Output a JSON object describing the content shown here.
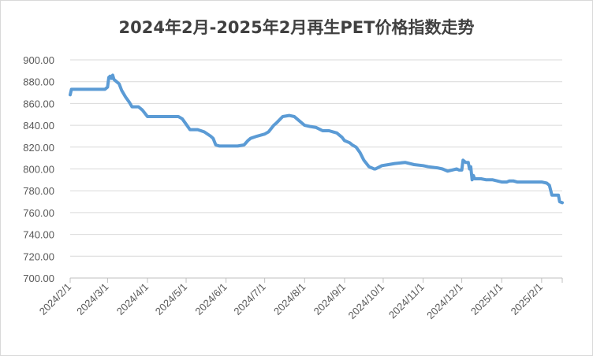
{
  "chart_data": {
    "type": "line",
    "title": "2024年2月-2025年2月再生PET价格指数走势",
    "xlabel": "",
    "ylabel": "",
    "ylim": [
      700,
      900
    ],
    "y_ticks": [
      "700.00",
      "720.00",
      "740.00",
      "760.00",
      "780.00",
      "800.00",
      "820.00",
      "840.00",
      "860.00",
      "880.00",
      "900.00"
    ],
    "x_ticks": [
      "2024/2/1",
      "2024/3/1",
      "2024/4/1",
      "2024/5/1",
      "2024/6/1",
      "2024/7/1",
      "2024/8/1",
      "2024/9/1",
      "2024/10/1",
      "2024/11/1",
      "2024/12/1",
      "2025/1/1",
      "2025/2/1"
    ],
    "grid": true,
    "legend": "none",
    "colors": {
      "line": "#5b9bd5",
      "grid": "#d9d9d9",
      "text": "#595959",
      "title": "#404040"
    },
    "series": [
      {
        "x": [
          "2024-02-01",
          "2024-02-02",
          "2024-02-05",
          "2024-02-10",
          "2024-02-20",
          "2024-02-28",
          "2024-03-01",
          "2024-03-02",
          "2024-03-03",
          "2024-03-04",
          "2024-03-05",
          "2024-03-06",
          "2024-03-08",
          "2024-03-10",
          "2024-03-12",
          "2024-03-15",
          "2024-03-18",
          "2024-03-20",
          "2024-03-25",
          "2024-03-28",
          "2024-04-01",
          "2024-04-10",
          "2024-04-20",
          "2024-04-25",
          "2024-04-28",
          "2024-05-01",
          "2024-05-04",
          "2024-05-10",
          "2024-05-15",
          "2024-05-20",
          "2024-05-22",
          "2024-05-24",
          "2024-05-27",
          "2024-06-01",
          "2024-06-10",
          "2024-06-15",
          "2024-06-18",
          "2024-06-20",
          "2024-06-25",
          "2024-06-28",
          "2024-07-01",
          "2024-07-04",
          "2024-07-08",
          "2024-07-10",
          "2024-07-15",
          "2024-07-20",
          "2024-07-24",
          "2024-07-26",
          "2024-08-01",
          "2024-08-05",
          "2024-08-10",
          "2024-08-15",
          "2024-08-20",
          "2024-08-23",
          "2024-08-26",
          "2024-08-30",
          "2024-09-01",
          "2024-09-05",
          "2024-09-07",
          "2024-09-10",
          "2024-09-13",
          "2024-09-16",
          "2024-09-20",
          "2024-09-24",
          "2024-09-25",
          "2024-09-30",
          "2024-10-05",
          "2024-10-10",
          "2024-10-18",
          "2024-10-25",
          "2024-11-01",
          "2024-11-05",
          "2024-11-12",
          "2024-11-16",
          "2024-11-18",
          "2024-11-20",
          "2024-11-27",
          "2024-11-29",
          "2024-12-01",
          "2024-12-02",
          "2024-12-04",
          "2024-12-06",
          "2024-12-07",
          "2024-12-08",
          "2024-12-09",
          "2024-12-10",
          "2024-12-11",
          "2024-12-12",
          "2024-12-13",
          "2024-12-14",
          "2024-12-15",
          "2024-12-16",
          "2024-12-20",
          "2024-12-25",
          "2025-01-01",
          "2025-01-05",
          "2025-01-07",
          "2025-01-10",
          "2025-01-13",
          "2025-01-20",
          "2025-01-30",
          "2025-02-01",
          "2025-02-05",
          "2025-02-07",
          "2025-02-09",
          "2025-02-14",
          "2025-02-15",
          "2025-02-17"
        ],
        "values": [
          868,
          873,
          873,
          873,
          873,
          873,
          875,
          884,
          885,
          883,
          886,
          882,
          880,
          878,
          872,
          866,
          861,
          857,
          857,
          854,
          848,
          848,
          848,
          848,
          846,
          841,
          836,
          836,
          834,
          830,
          828,
          822,
          821,
          821,
          821,
          822,
          826,
          828,
          830,
          831,
          832,
          834,
          840,
          842,
          848,
          849,
          848,
          846,
          840,
          839,
          838,
          835,
          835,
          834,
          833,
          829,
          826,
          824,
          822,
          820,
          815,
          808,
          802,
          800,
          800,
          803,
          804,
          805,
          806,
          804,
          803,
          802,
          801,
          800,
          799,
          798,
          800,
          799,
          799,
          808,
          806,
          806,
          800,
          802,
          790,
          794,
          791,
          791,
          791,
          791,
          791,
          791,
          790,
          790,
          788,
          788,
          789,
          789,
          788,
          788,
          788,
          788,
          787,
          785,
          776,
          776,
          770,
          769
        ]
      }
    ]
  }
}
